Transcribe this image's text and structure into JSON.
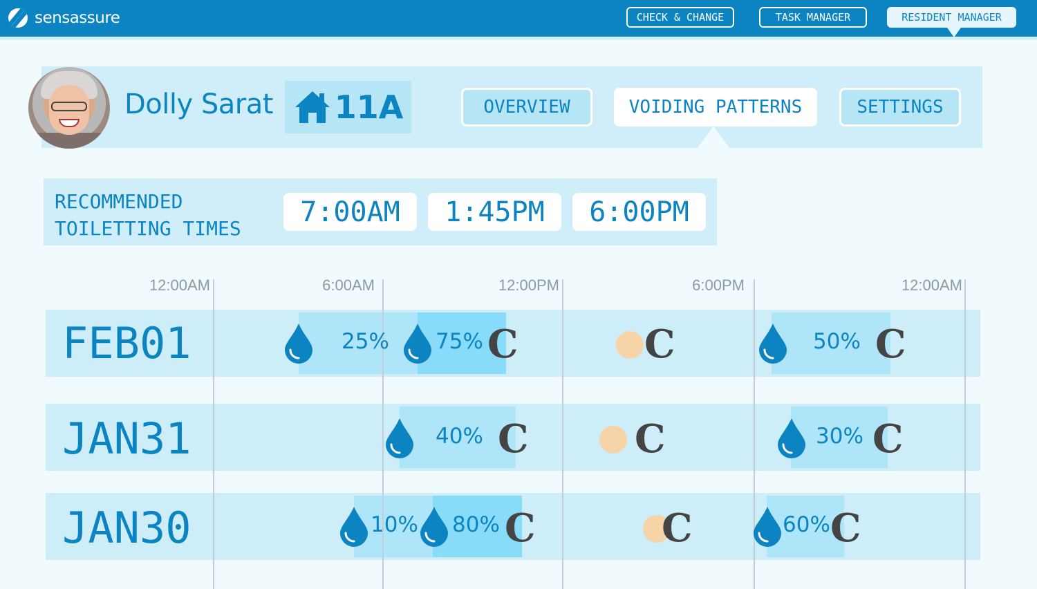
{
  "app": {
    "brand": "sensassure"
  },
  "nav": {
    "check_change": "CHECK & CHANGE",
    "task_manager": "TASK MANAGER",
    "resident_manager": "RESIDENT MANAGER"
  },
  "resident": {
    "name": "Dolly Sarat",
    "room": "11A"
  },
  "tabs": {
    "overview": "OVERVIEW",
    "voiding_patterns": "VOIDING PATTERNS",
    "settings": "SETTINGS"
  },
  "recommended": {
    "label_line1": "RECOMMENDED",
    "label_line2": "TOILETTING TIMES",
    "times": [
      "7:00AM",
      "1:45PM",
      "6:00PM"
    ]
  },
  "timeline": {
    "axis_labels": [
      "12:00AM",
      "6:00AM",
      "12:00PM",
      "6:00PM",
      "12:00AM"
    ],
    "days": [
      {
        "label": "FEB01",
        "percents": [
          "25%",
          "75%",
          "50%"
        ],
        "change_mark": "C"
      },
      {
        "label": "JAN31",
        "percents": [
          "40%",
          "30%"
        ],
        "change_mark": "C"
      },
      {
        "label": "JAN30",
        "percents": [
          "10%",
          "80%",
          "60%"
        ],
        "change_mark": "C"
      }
    ]
  },
  "colors": {
    "primary": "#0c84c2",
    "panel": "#cfeef9",
    "segment_light": "#afe5f8",
    "segment_dark": "#88dcfa",
    "dry_dot": "#f6d4a8"
  },
  "icons": {
    "drop": "water-drop-icon",
    "home": "home-icon",
    "dry": "dry-dot-icon",
    "change": "change-mark-icon"
  }
}
